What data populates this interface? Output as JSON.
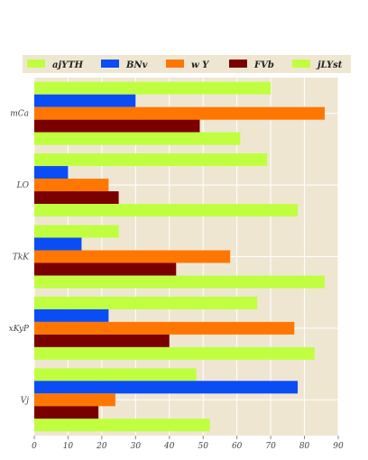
{
  "chart_data": {
    "type": "bar",
    "orientation": "horizontal",
    "categories": [
      "mCa",
      "LO",
      "TkK",
      "xKyP",
      "Vj"
    ],
    "series": [
      {
        "name": "ajYTH",
        "color": "#bfff40",
        "values": [
          70,
          69,
          25,
          66,
          48
        ]
      },
      {
        "name": "BNv",
        "color": "#0a4df5",
        "values": [
          30,
          10,
          14,
          22,
          78
        ]
      },
      {
        "name": "w Y",
        "color": "#ff7700",
        "values": [
          86,
          22,
          58,
          77,
          24
        ]
      },
      {
        "name": "FVb",
        "color": "#7a0000",
        "values": [
          49,
          25,
          42,
          40,
          19
        ]
      },
      {
        "name": "jLYst",
        "color": "#bfff40",
        "values": [
          61,
          78,
          86,
          83,
          52
        ]
      }
    ],
    "x_ticks": [
      0,
      10,
      20,
      30,
      40,
      50,
      60,
      70,
      80,
      90
    ],
    "xlim": [
      0,
      90
    ],
    "grid": true,
    "legend_position": "top",
    "plot_background": "#efe6d2",
    "legend_background": "#efe6d2"
  }
}
